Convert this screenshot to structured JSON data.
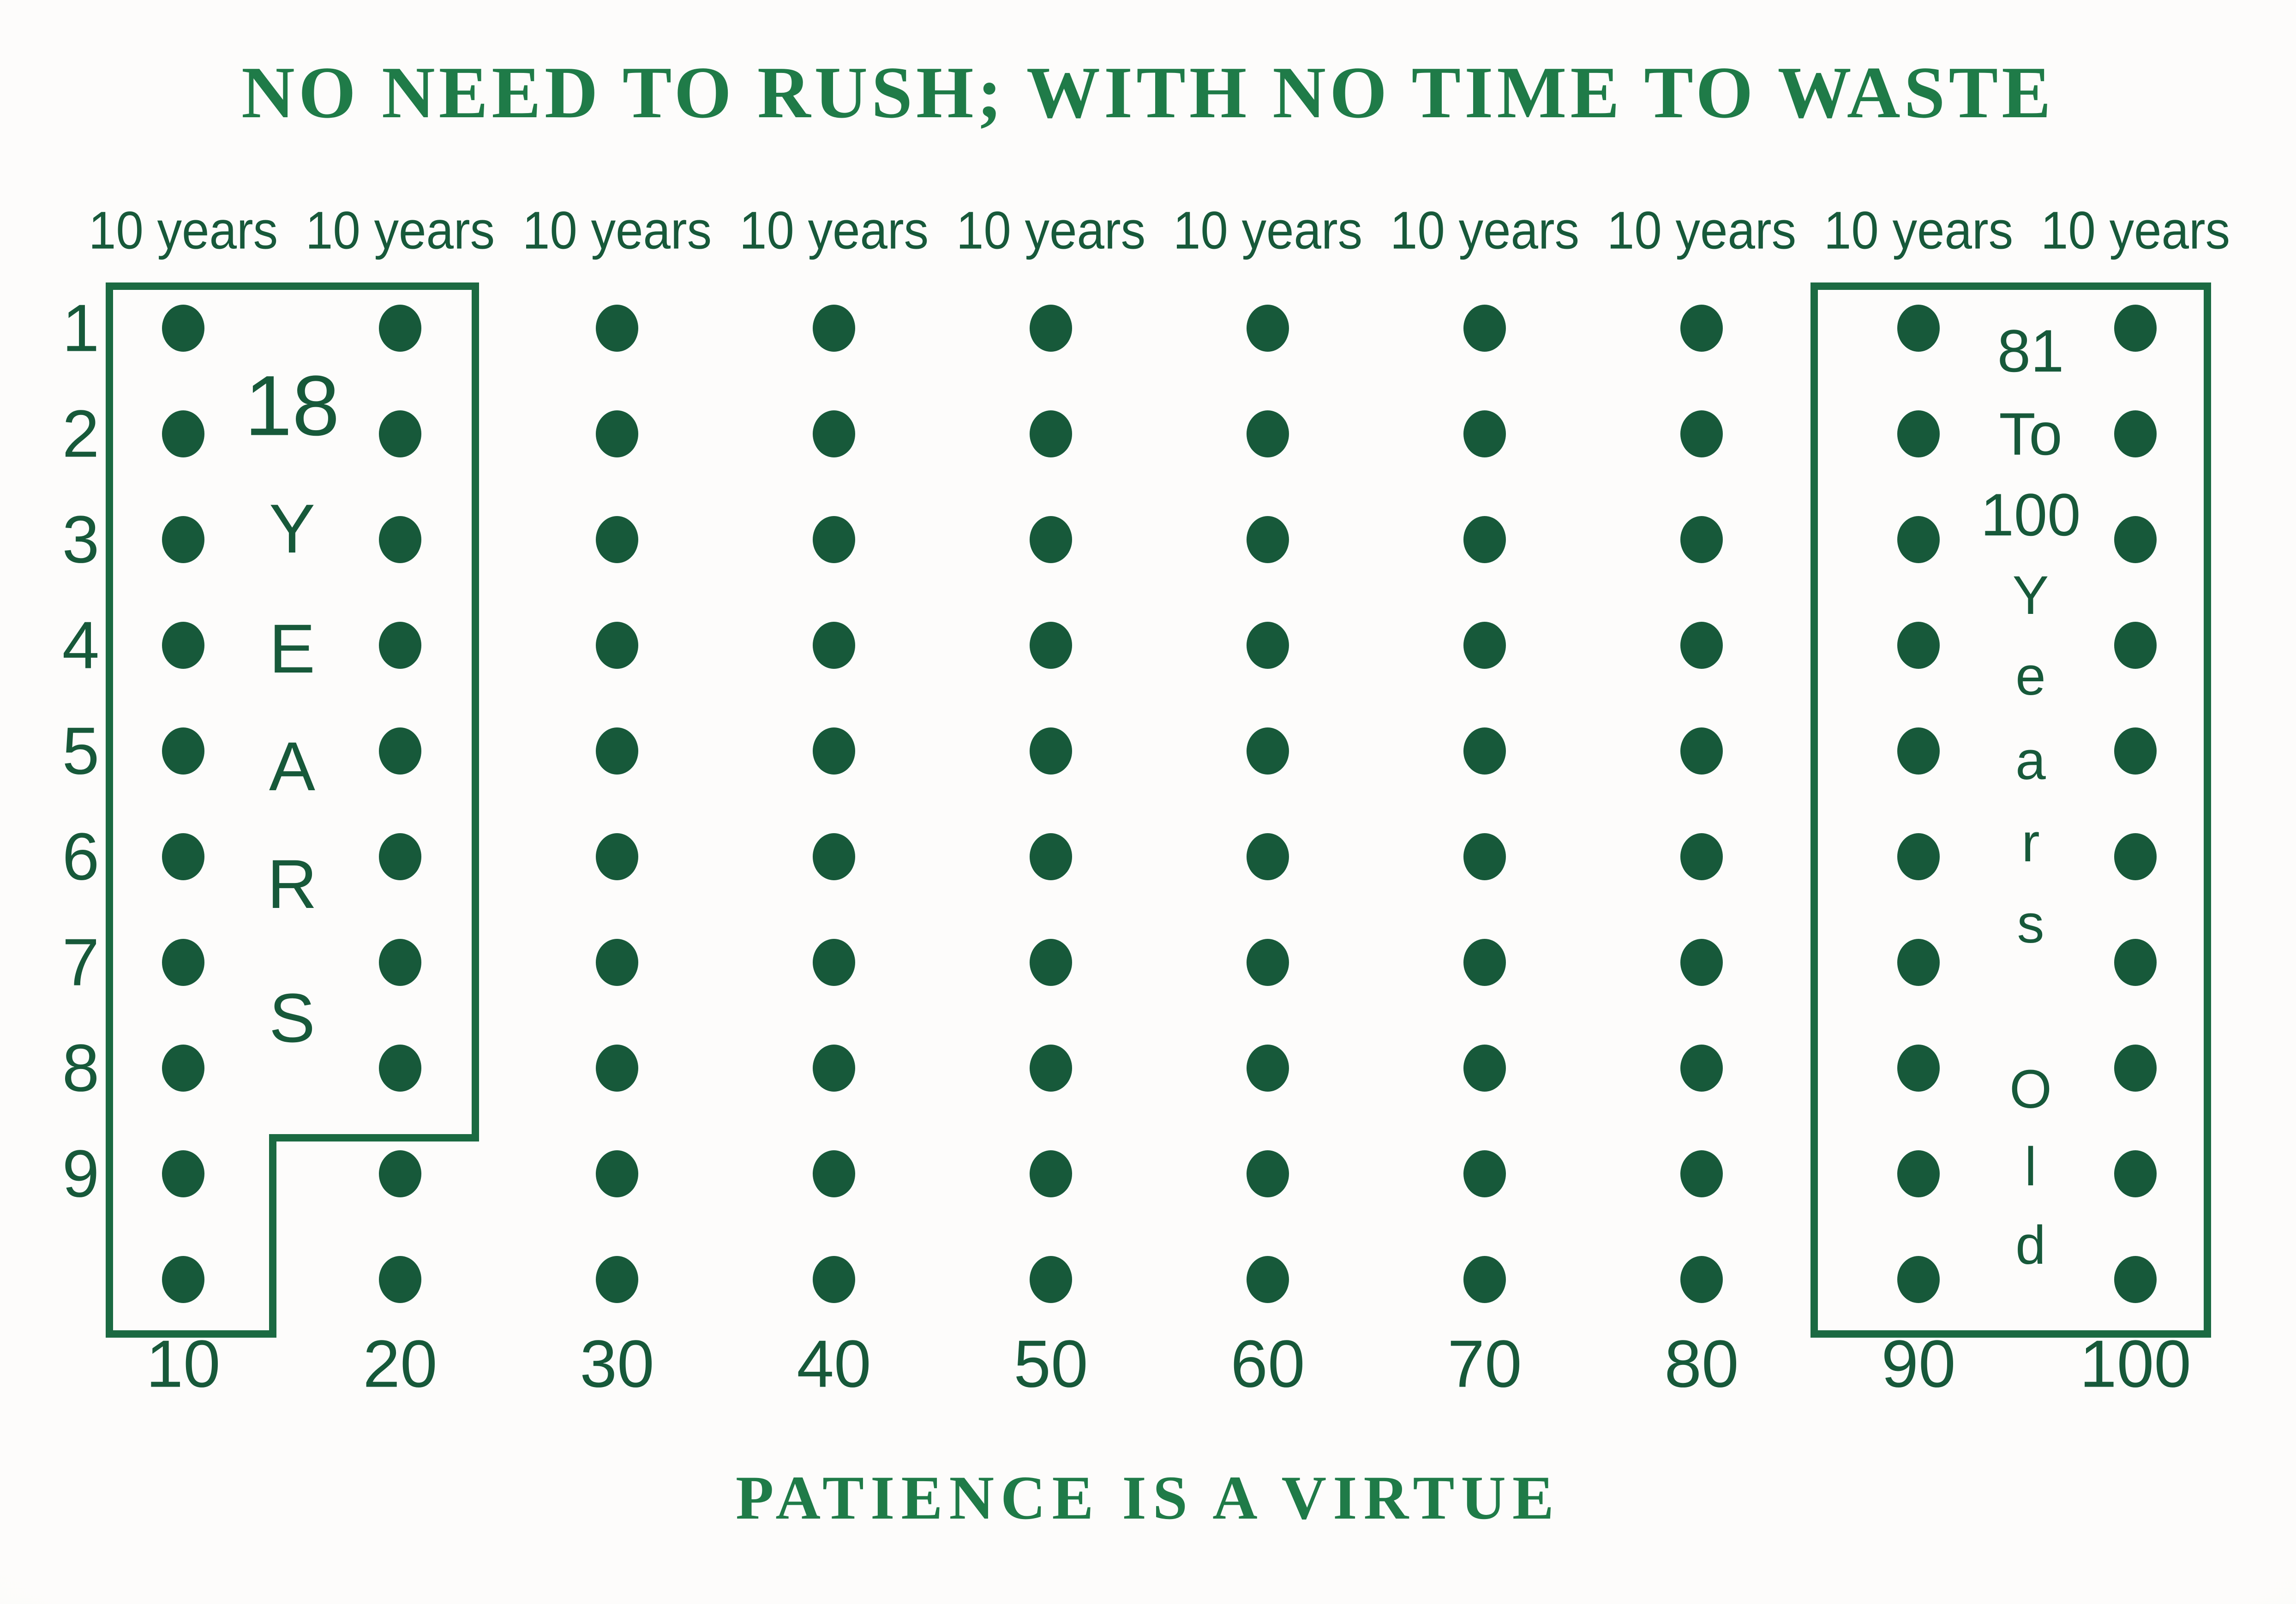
{
  "titles": {
    "top": "NO NEED TO RUSH; WITH NO TIME TO WASTE",
    "bottom": "PATIENCE IS A VIRTUE"
  },
  "grid": {
    "columns": 10,
    "rows": 10,
    "total_dots": 100,
    "column_headers": [
      "10 years",
      "10 years",
      "10 years",
      "10 years",
      "10 years",
      "10 years",
      "10 years",
      "10 years",
      "10 years",
      "10 years"
    ],
    "row_labels": [
      "1",
      "2",
      "3",
      "4",
      "5",
      "6",
      "7",
      "8",
      "9"
    ],
    "bottom_labels": [
      "10",
      "20",
      "30",
      "40",
      "50",
      "60",
      "70",
      "80",
      "90",
      "100"
    ]
  },
  "annotations": {
    "left_box_lines": [
      "18",
      "Y",
      "E",
      "A",
      "R",
      "S"
    ],
    "right_box_lines": [
      "81",
      "To",
      "100",
      "Y",
      "e",
      "a",
      "r",
      "s",
      "O",
      "l",
      "d"
    ]
  },
  "colors": {
    "green_text": "#17593A",
    "green_title": "#1F7B48",
    "green_border": "#1B6A42",
    "background": "#FBFAF8"
  }
}
